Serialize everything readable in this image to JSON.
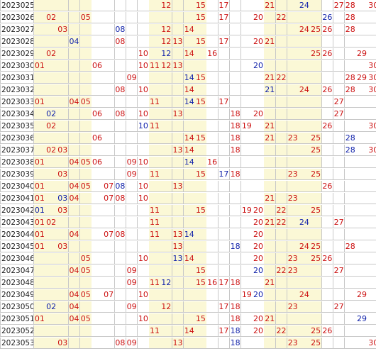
{
  "palette": {
    "red": "#cc1111",
    "blue": "#1122aa",
    "zone_bg": "#fbf8d6",
    "grid_line": "#c8c8c8"
  },
  "rows": [
    {
      "issue": "2023025",
      "nums": [
        {
          "n": 12,
          "c": "red"
        },
        {
          "n": 15,
          "c": "red"
        },
        {
          "n": 17,
          "c": "red"
        },
        {
          "n": 21,
          "c": "red"
        },
        {
          "n": 24,
          "c": "blue"
        },
        {
          "n": 27,
          "c": "red"
        },
        {
          "n": 28,
          "c": "red"
        },
        {
          "n": 30,
          "c": "red"
        }
      ]
    },
    {
      "issue": "2023026",
      "nums": [
        {
          "n": 2,
          "c": "red"
        },
        {
          "n": 5,
          "c": "red"
        },
        {
          "n": 15,
          "c": "red"
        },
        {
          "n": 17,
          "c": "red"
        },
        {
          "n": 20,
          "c": "red"
        },
        {
          "n": 22,
          "c": "red"
        },
        {
          "n": 26,
          "c": "blue"
        },
        {
          "n": 28,
          "c": "red"
        }
      ]
    },
    {
      "issue": "2023027",
      "nums": [
        {
          "n": 3,
          "c": "red"
        },
        {
          "n": 8,
          "c": "blue"
        },
        {
          "n": 12,
          "c": "red"
        },
        {
          "n": 14,
          "c": "red"
        },
        {
          "n": 24,
          "c": "red"
        },
        {
          "n": 25,
          "c": "red"
        },
        {
          "n": 26,
          "c": "red"
        },
        {
          "n": 28,
          "c": "red"
        }
      ]
    },
    {
      "issue": "2023028",
      "nums": [
        {
          "n": 4,
          "c": "blue"
        },
        {
          "n": 8,
          "c": "red"
        },
        {
          "n": 12,
          "c": "red"
        },
        {
          "n": 13,
          "c": "red"
        },
        {
          "n": 15,
          "c": "red"
        },
        {
          "n": 17,
          "c": "red"
        },
        {
          "n": 20,
          "c": "red"
        },
        {
          "n": 21,
          "c": "red"
        }
      ]
    },
    {
      "issue": "2023029",
      "nums": [
        {
          "n": 2,
          "c": "red"
        },
        {
          "n": 10,
          "c": "red"
        },
        {
          "n": 12,
          "c": "blue"
        },
        {
          "n": 14,
          "c": "red"
        },
        {
          "n": 16,
          "c": "red"
        },
        {
          "n": 25,
          "c": "red"
        },
        {
          "n": 26,
          "c": "red"
        },
        {
          "n": 29,
          "c": "red"
        }
      ]
    },
    {
      "issue": "2023030",
      "nums": [
        {
          "n": 1,
          "c": "red"
        },
        {
          "n": 6,
          "c": "red"
        },
        {
          "n": 10,
          "c": "red"
        },
        {
          "n": 11,
          "c": "red"
        },
        {
          "n": 12,
          "c": "red"
        },
        {
          "n": 13,
          "c": "red"
        },
        {
          "n": 20,
          "c": "blue"
        },
        {
          "n": 30,
          "c": "red"
        }
      ]
    },
    {
      "issue": "2023031",
      "nums": [
        {
          "n": 9,
          "c": "red"
        },
        {
          "n": 14,
          "c": "blue"
        },
        {
          "n": 15,
          "c": "red"
        },
        {
          "n": 21,
          "c": "red"
        },
        {
          "n": 22,
          "c": "red"
        },
        {
          "n": 28,
          "c": "red"
        },
        {
          "n": 29,
          "c": "red"
        },
        {
          "n": 30,
          "c": "red"
        }
      ]
    },
    {
      "issue": "2023032",
      "nums": [
        {
          "n": 8,
          "c": "red"
        },
        {
          "n": 10,
          "c": "red"
        },
        {
          "n": 14,
          "c": "red"
        },
        {
          "n": 21,
          "c": "blue"
        },
        {
          "n": 24,
          "c": "red"
        },
        {
          "n": 26,
          "c": "red"
        },
        {
          "n": 28,
          "c": "red"
        },
        {
          "n": 30,
          "c": "red"
        }
      ]
    },
    {
      "issue": "2023033",
      "nums": [
        {
          "n": 1,
          "c": "red"
        },
        {
          "n": 4,
          "c": "red"
        },
        {
          "n": 5,
          "c": "red"
        },
        {
          "n": 11,
          "c": "red"
        },
        {
          "n": 14,
          "c": "blue"
        },
        {
          "n": 15,
          "c": "red"
        },
        {
          "n": 17,
          "c": "red"
        },
        {
          "n": 27,
          "c": "red"
        }
      ]
    },
    {
      "issue": "2023034",
      "nums": [
        {
          "n": 2,
          "c": "blue"
        },
        {
          "n": 6,
          "c": "red"
        },
        {
          "n": 8,
          "c": "red"
        },
        {
          "n": 10,
          "c": "red"
        },
        {
          "n": 13,
          "c": "red"
        },
        {
          "n": 18,
          "c": "red"
        },
        {
          "n": 20,
          "c": "red"
        },
        {
          "n": 27,
          "c": "red"
        }
      ]
    },
    {
      "issue": "2023035",
      "nums": [
        {
          "n": 2,
          "c": "red"
        },
        {
          "n": 10,
          "c": "blue"
        },
        {
          "n": 11,
          "c": "red"
        },
        {
          "n": 18,
          "c": "red"
        },
        {
          "n": 19,
          "c": "red"
        },
        {
          "n": 21,
          "c": "red"
        },
        {
          "n": 26,
          "c": "red"
        },
        {
          "n": 30,
          "c": "red"
        }
      ]
    },
    {
      "issue": "2023036",
      "nums": [
        {
          "n": 6,
          "c": "red"
        },
        {
          "n": 14,
          "c": "red"
        },
        {
          "n": 15,
          "c": "red"
        },
        {
          "n": 18,
          "c": "red"
        },
        {
          "n": 21,
          "c": "red"
        },
        {
          "n": 23,
          "c": "red"
        },
        {
          "n": 25,
          "c": "red"
        },
        {
          "n": 28,
          "c": "blue"
        }
      ]
    },
    {
      "issue": "2023037",
      "nums": [
        {
          "n": 2,
          "c": "red"
        },
        {
          "n": 3,
          "c": "red"
        },
        {
          "n": 13,
          "c": "red"
        },
        {
          "n": 14,
          "c": "red"
        },
        {
          "n": 18,
          "c": "red"
        },
        {
          "n": 25,
          "c": "red"
        },
        {
          "n": 28,
          "c": "blue"
        },
        {
          "n": 30,
          "c": "red"
        }
      ]
    },
    {
      "issue": "2023038",
      "nums": [
        {
          "n": 1,
          "c": "red"
        },
        {
          "n": 4,
          "c": "red"
        },
        {
          "n": 5,
          "c": "red"
        },
        {
          "n": 6,
          "c": "red"
        },
        {
          "n": 9,
          "c": "red"
        },
        {
          "n": 10,
          "c": "red"
        },
        {
          "n": 14,
          "c": "blue"
        },
        {
          "n": 16,
          "c": "red"
        }
      ]
    },
    {
      "issue": "2023039",
      "nums": [
        {
          "n": 3,
          "c": "red"
        },
        {
          "n": 9,
          "c": "red"
        },
        {
          "n": 11,
          "c": "red"
        },
        {
          "n": 15,
          "c": "red"
        },
        {
          "n": 17,
          "c": "blue"
        },
        {
          "n": 18,
          "c": "red"
        },
        {
          "n": 23,
          "c": "red"
        },
        {
          "n": 25,
          "c": "red"
        }
      ]
    },
    {
      "issue": "2023040",
      "nums": [
        {
          "n": 1,
          "c": "red"
        },
        {
          "n": 4,
          "c": "red"
        },
        {
          "n": 5,
          "c": "red"
        },
        {
          "n": 7,
          "c": "red"
        },
        {
          "n": 8,
          "c": "blue"
        },
        {
          "n": 10,
          "c": "red"
        },
        {
          "n": 13,
          "c": "red"
        },
        {
          "n": 26,
          "c": "red"
        }
      ]
    },
    {
      "issue": "2023041",
      "nums": [
        {
          "n": 1,
          "c": "red"
        },
        {
          "n": 3,
          "c": "blue"
        },
        {
          "n": 4,
          "c": "red"
        },
        {
          "n": 7,
          "c": "red"
        },
        {
          "n": 8,
          "c": "red"
        },
        {
          "n": 10,
          "c": "red"
        },
        {
          "n": 21,
          "c": "red"
        },
        {
          "n": 23,
          "c": "red"
        }
      ]
    },
    {
      "issue": "2023042",
      "nums": [
        {
          "n": 1,
          "c": "blue"
        },
        {
          "n": 3,
          "c": "red"
        },
        {
          "n": 11,
          "c": "red"
        },
        {
          "n": 15,
          "c": "red"
        },
        {
          "n": 19,
          "c": "red"
        },
        {
          "n": 20,
          "c": "red"
        },
        {
          "n": 22,
          "c": "red"
        },
        {
          "n": 25,
          "c": "red"
        }
      ]
    },
    {
      "issue": "2023043",
      "nums": [
        {
          "n": 1,
          "c": "red"
        },
        {
          "n": 2,
          "c": "red"
        },
        {
          "n": 11,
          "c": "red"
        },
        {
          "n": 20,
          "c": "red"
        },
        {
          "n": 21,
          "c": "red"
        },
        {
          "n": 22,
          "c": "red"
        },
        {
          "n": 24,
          "c": "blue"
        },
        {
          "n": 27,
          "c": "red"
        }
      ]
    },
    {
      "issue": "2023044",
      "nums": [
        {
          "n": 1,
          "c": "red"
        },
        {
          "n": 4,
          "c": "red"
        },
        {
          "n": 7,
          "c": "red"
        },
        {
          "n": 8,
          "c": "red"
        },
        {
          "n": 11,
          "c": "red"
        },
        {
          "n": 13,
          "c": "red"
        },
        {
          "n": 14,
          "c": "blue"
        },
        {
          "n": 20,
          "c": "red"
        }
      ]
    },
    {
      "issue": "2023045",
      "nums": [
        {
          "n": 1,
          "c": "red"
        },
        {
          "n": 3,
          "c": "red"
        },
        {
          "n": 13,
          "c": "red"
        },
        {
          "n": 18,
          "c": "blue"
        },
        {
          "n": 20,
          "c": "red"
        },
        {
          "n": 24,
          "c": "red"
        },
        {
          "n": 25,
          "c": "red"
        },
        {
          "n": 28,
          "c": "red"
        }
      ]
    },
    {
      "issue": "2023046",
      "nums": [
        {
          "n": 5,
          "c": "red"
        },
        {
          "n": 10,
          "c": "red"
        },
        {
          "n": 13,
          "c": "blue"
        },
        {
          "n": 14,
          "c": "red"
        },
        {
          "n": 20,
          "c": "red"
        },
        {
          "n": 23,
          "c": "red"
        },
        {
          "n": 25,
          "c": "red"
        },
        {
          "n": 26,
          "c": "red"
        }
      ]
    },
    {
      "issue": "2023047",
      "nums": [
        {
          "n": 4,
          "c": "red"
        },
        {
          "n": 5,
          "c": "red"
        },
        {
          "n": 9,
          "c": "red"
        },
        {
          "n": 15,
          "c": "red"
        },
        {
          "n": 20,
          "c": "blue"
        },
        {
          "n": 22,
          "c": "red"
        },
        {
          "n": 23,
          "c": "red"
        },
        {
          "n": 27,
          "c": "red"
        }
      ]
    },
    {
      "issue": "2023048",
      "nums": [
        {
          "n": 9,
          "c": "red"
        },
        {
          "n": 11,
          "c": "red"
        },
        {
          "n": 12,
          "c": "blue"
        },
        {
          "n": 15,
          "c": "red"
        },
        {
          "n": 16,
          "c": "red"
        },
        {
          "n": 17,
          "c": "red"
        },
        {
          "n": 18,
          "c": "red"
        },
        {
          "n": 21,
          "c": "red"
        }
      ]
    },
    {
      "issue": "2023049",
      "nums": [
        {
          "n": 4,
          "c": "red"
        },
        {
          "n": 5,
          "c": "red"
        },
        {
          "n": 7,
          "c": "red"
        },
        {
          "n": 10,
          "c": "red"
        },
        {
          "n": 19,
          "c": "red"
        },
        {
          "n": 20,
          "c": "blue"
        },
        {
          "n": 24,
          "c": "red"
        },
        {
          "n": 29,
          "c": "red"
        }
      ]
    },
    {
      "issue": "2023050",
      "nums": [
        {
          "n": 2,
          "c": "blue"
        },
        {
          "n": 4,
          "c": "red"
        },
        {
          "n": 9,
          "c": "red"
        },
        {
          "n": 12,
          "c": "red"
        },
        {
          "n": 17,
          "c": "red"
        },
        {
          "n": 18,
          "c": "red"
        },
        {
          "n": 23,
          "c": "red"
        },
        {
          "n": 27,
          "c": "red"
        }
      ]
    },
    {
      "issue": "2023051",
      "nums": [
        {
          "n": 1,
          "c": "red"
        },
        {
          "n": 4,
          "c": "red"
        },
        {
          "n": 5,
          "c": "red"
        },
        {
          "n": 10,
          "c": "red"
        },
        {
          "n": 15,
          "c": "red"
        },
        {
          "n": 18,
          "c": "red"
        },
        {
          "n": 20,
          "c": "red"
        },
        {
          "n": 21,
          "c": "red"
        },
        {
          "n": 29,
          "c": "blue"
        }
      ]
    },
    {
      "issue": "2023052",
      "nums": [
        {
          "n": 11,
          "c": "red"
        },
        {
          "n": 14,
          "c": "red"
        },
        {
          "n": 17,
          "c": "red"
        },
        {
          "n": 18,
          "c": "blue"
        },
        {
          "n": 20,
          "c": "red"
        },
        {
          "n": 22,
          "c": "red"
        },
        {
          "n": 25,
          "c": "red"
        },
        {
          "n": 26,
          "c": "red"
        }
      ]
    },
    {
      "issue": "2023053",
      "nums": [
        {
          "n": 3,
          "c": "red"
        },
        {
          "n": 8,
          "c": "red"
        },
        {
          "n": 9,
          "c": "red"
        },
        {
          "n": 13,
          "c": "red"
        },
        {
          "n": 18,
          "c": "blue"
        },
        {
          "n": 23,
          "c": "red"
        },
        {
          "n": 25,
          "c": "red"
        },
        {
          "n": 30,
          "c": "red"
        }
      ]
    }
  ]
}
